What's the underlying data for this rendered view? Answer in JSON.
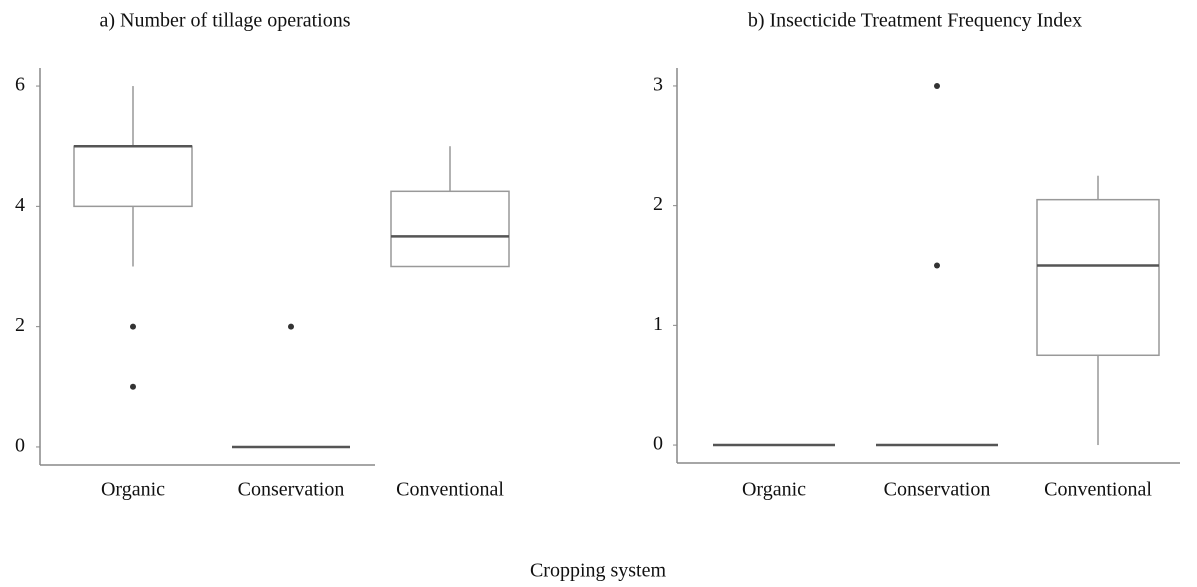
{
  "figure": {
    "xlabel": "Cropping system"
  },
  "chart_data": [
    {
      "type": "box",
      "title": "a) Number of tillage operations",
      "categories": [
        "Organic",
        "Conservation",
        "Conventional"
      ],
      "boxes": [
        {
          "min": 3,
          "q1": 4,
          "median": 5,
          "q3": 5,
          "max": 6,
          "outliers": [
            2,
            1
          ]
        },
        {
          "min": 0,
          "q1": 0,
          "median": 0,
          "q3": 0,
          "max": 0,
          "outliers": [
            2
          ]
        },
        {
          "min": 3,
          "q1": 3,
          "median": 3.5,
          "q3": 4.25,
          "max": 5,
          "outliers": []
        }
      ],
      "color": "#999999",
      "median_color": "#555555",
      "ylim": [
        -0.3,
        6.3
      ],
      "yticks": [
        0,
        2,
        4,
        6
      ]
    },
    {
      "type": "box",
      "title": "b) Insecticide Treatment Frequency Index",
      "categories": [
        "Organic",
        "Conservation",
        "Conventional"
      ],
      "boxes": [
        {
          "min": 0,
          "q1": 0,
          "median": 0,
          "q3": 0,
          "max": 0,
          "outliers": []
        },
        {
          "min": 0,
          "q1": 0,
          "median": 0,
          "q3": 0,
          "max": 0,
          "outliers": [
            3,
            1.5
          ]
        },
        {
          "min": 0,
          "q1": 0.75,
          "median": 1.5,
          "q3": 2.05,
          "max": 2.25,
          "outliers": []
        }
      ],
      "color": "#999999",
      "median_color": "#555555",
      "ylim": [
        -0.15,
        3.15
      ],
      "yticks": [
        0,
        1,
        2,
        3
      ]
    }
  ]
}
